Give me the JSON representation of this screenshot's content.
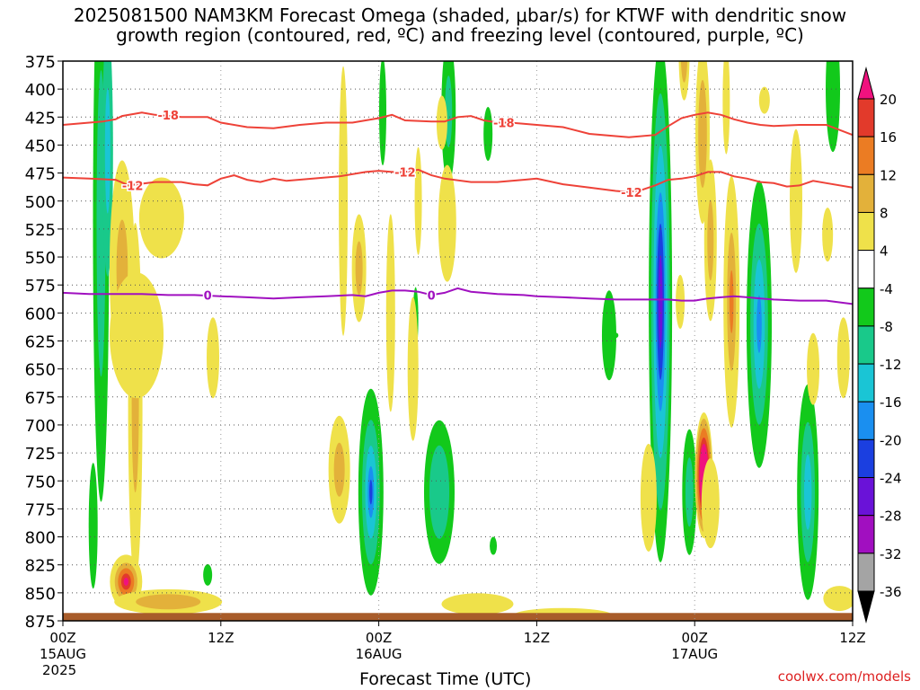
{
  "title": {
    "line1": "2025081500 NAM3KM Forecast Omega (shaded, μbar/s) for KTWF with dendritic snow",
    "line2": "growth region (contoured, red, ºC) and freezing level (contoured, purple, ºC)"
  },
  "watermark": "coolwx.com/models",
  "chart_data": {
    "type": "heatmap",
    "xlabel": "Forecast Time (UTC)",
    "ylabel": "",
    "x_range_hours": [
      0,
      60
    ],
    "x_ticks": [
      {
        "hour": 0,
        "label": "00Z",
        "sub": "15AUG",
        "sub2": "2025"
      },
      {
        "hour": 12,
        "label": "12Z",
        "sub": "",
        "sub2": ""
      },
      {
        "hour": 24,
        "label": "00Z",
        "sub": "16AUG",
        "sub2": ""
      },
      {
        "hour": 36,
        "label": "12Z",
        "sub": "",
        "sub2": ""
      },
      {
        "hour": 48,
        "label": "00Z",
        "sub": "17AUG",
        "sub2": ""
      },
      {
        "hour": 60,
        "label": "12Z",
        "sub": "",
        "sub2": ""
      }
    ],
    "y_range_mb": [
      375,
      875
    ],
    "y_ticks": [
      375,
      400,
      425,
      450,
      475,
      500,
      525,
      550,
      575,
      600,
      625,
      650,
      675,
      700,
      725,
      750,
      775,
      800,
      825,
      850,
      875
    ],
    "grid": true,
    "colorbar": {
      "labels": [
        "20",
        "16",
        "12",
        "8",
        "4",
        "-4",
        "-8",
        "-12",
        "-16",
        "-20",
        "-24",
        "-28",
        "-32",
        "-36"
      ],
      "bins": [
        {
          "color": "#f0127e",
          "label": ">20"
        },
        {
          "color": "#e23a2b",
          "label": "16 to 20"
        },
        {
          "color": "#eb7c23",
          "label": "12 to 16"
        },
        {
          "color": "#e3b13a",
          "label": "8 to 12"
        },
        {
          "color": "#efe14a",
          "label": "4 to 8"
        },
        {
          "color": "#ffffff",
          "label": "-4 to 4"
        },
        {
          "color": "#12c91b",
          "label": "-8 to -4"
        },
        {
          "color": "#19c98a",
          "label": "-12 to -8"
        },
        {
          "color": "#1ac5d5",
          "label": "-16 to -12"
        },
        {
          "color": "#1a8ff0",
          "label": "-20 to -16"
        },
        {
          "color": "#1b3fe0",
          "label": "-24 to -20"
        },
        {
          "color": "#6a12d8",
          "label": "-28 to -24"
        },
        {
          "color": "#a10fc0",
          "label": "-32 to -28"
        },
        {
          "color": "#a4a4a4",
          "label": "-36 to -32"
        },
        {
          "color": "#000000",
          "label": "<-36"
        }
      ]
    },
    "contours": [
      {
        "name": "-18",
        "color": "#ee4238",
        "label_hours": [
          8,
          33.5
        ],
        "points": [
          [
            0,
            432
          ],
          [
            3,
            429
          ],
          [
            4,
            427
          ],
          [
            4.5,
            424
          ],
          [
            6,
            421
          ],
          [
            7,
            423
          ],
          [
            9,
            425
          ],
          [
            11,
            425
          ],
          [
            12,
            430
          ],
          [
            14,
            434
          ],
          [
            16,
            435
          ],
          [
            18,
            432
          ],
          [
            20,
            430
          ],
          [
            22,
            430
          ],
          [
            24,
            426
          ],
          [
            25,
            423
          ],
          [
            26,
            428
          ],
          [
            28,
            429
          ],
          [
            29,
            429
          ],
          [
            30,
            425
          ],
          [
            31,
            424
          ],
          [
            32,
            428
          ],
          [
            33,
            430
          ],
          [
            34,
            430
          ],
          [
            36,
            432
          ],
          [
            38,
            434
          ],
          [
            40,
            440
          ],
          [
            42,
            442
          ],
          [
            43,
            443
          ],
          [
            45,
            441
          ],
          [
            46,
            433
          ],
          [
            47,
            426
          ],
          [
            48,
            423
          ],
          [
            49,
            421
          ],
          [
            50,
            423
          ],
          [
            51,
            427
          ],
          [
            52,
            430
          ],
          [
            53,
            432
          ],
          [
            54,
            433
          ],
          [
            56,
            432
          ],
          [
            58,
            432
          ],
          [
            60,
            441
          ]
        ]
      },
      {
        "name": "-12",
        "color": "#ee4238",
        "label_hours": [
          5.3,
          26,
          43.2
        ],
        "points": [
          [
            0,
            479
          ],
          [
            2,
            480
          ],
          [
            4,
            481
          ],
          [
            5,
            486
          ],
          [
            7,
            483
          ],
          [
            9,
            483
          ],
          [
            10,
            485
          ],
          [
            11,
            486
          ],
          [
            12,
            480
          ],
          [
            13,
            477
          ],
          [
            14,
            481
          ],
          [
            15,
            483
          ],
          [
            16,
            480
          ],
          [
            17,
            482
          ],
          [
            19,
            480
          ],
          [
            21,
            478
          ],
          [
            23,
            474
          ],
          [
            24,
            473
          ],
          [
            25,
            474
          ],
          [
            26,
            474
          ],
          [
            27,
            472
          ],
          [
            28,
            477
          ],
          [
            29,
            480
          ],
          [
            31,
            483
          ],
          [
            33,
            483
          ],
          [
            35,
            481
          ],
          [
            36,
            480
          ],
          [
            38,
            485
          ],
          [
            40,
            488
          ],
          [
            42,
            491
          ],
          [
            43,
            492
          ],
          [
            44,
            490
          ],
          [
            45,
            486
          ],
          [
            46,
            481
          ],
          [
            47,
            480
          ],
          [
            48,
            478
          ],
          [
            49,
            474
          ],
          [
            50,
            474
          ],
          [
            51,
            478
          ],
          [
            52,
            480
          ],
          [
            53,
            483
          ],
          [
            54,
            484
          ],
          [
            55,
            487
          ],
          [
            56,
            486
          ],
          [
            57,
            482
          ],
          [
            58,
            484
          ],
          [
            60,
            488
          ]
        ]
      },
      {
        "name": "0",
        "color": "#a010c0",
        "label_hours": [
          11,
          28
        ],
        "points": [
          [
            0,
            582
          ],
          [
            2,
            583
          ],
          [
            4,
            583
          ],
          [
            6,
            583
          ],
          [
            8,
            584
          ],
          [
            10,
            584
          ],
          [
            12,
            585
          ],
          [
            14,
            586
          ],
          [
            16,
            587
          ],
          [
            18,
            586
          ],
          [
            20,
            585
          ],
          [
            22,
            584
          ],
          [
            23,
            585
          ],
          [
            24,
            582
          ],
          [
            25,
            580
          ],
          [
            26,
            580
          ],
          [
            27,
            581
          ],
          [
            28,
            584
          ],
          [
            29,
            582
          ],
          [
            30,
            578
          ],
          [
            31,
            581
          ],
          [
            33,
            583
          ],
          [
            35,
            584
          ],
          [
            36,
            585
          ],
          [
            38,
            586
          ],
          [
            40,
            587
          ],
          [
            42,
            588
          ],
          [
            44,
            588
          ],
          [
            46,
            588
          ],
          [
            47,
            589
          ],
          [
            48,
            589
          ],
          [
            49,
            587
          ],
          [
            50,
            586
          ],
          [
            51,
            585
          ],
          [
            52,
            586
          ],
          [
            53,
            587
          ],
          [
            54,
            588
          ],
          [
            56,
            589
          ],
          [
            58,
            589
          ],
          [
            60,
            592
          ]
        ]
      }
    ]
  }
}
